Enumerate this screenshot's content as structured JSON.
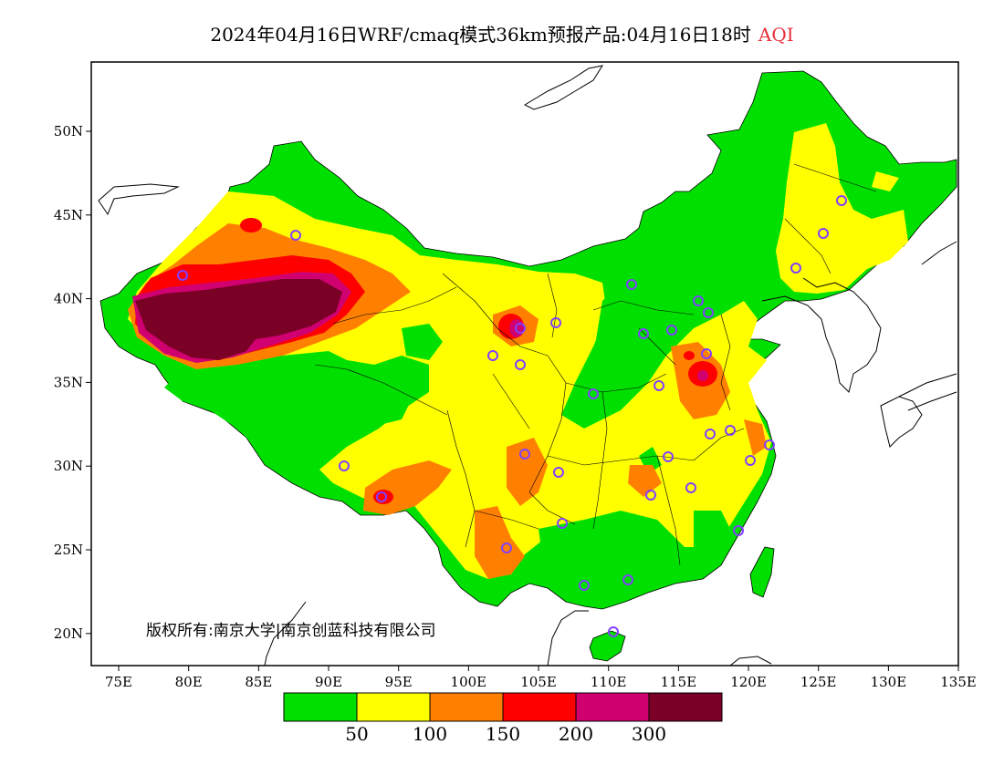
{
  "title": {
    "main": "2024年04月16日WRF/cmaq模式36km预报产品:04月16日18时",
    "variable": "AQI"
  },
  "axes": {
    "x_ticks": [
      "75E",
      "80E",
      "85E",
      "90E",
      "95E",
      "100E",
      "105E",
      "110E",
      "115E",
      "120E",
      "125E",
      "130E",
      "135E"
    ],
    "y_ticks": [
      "50N",
      "45N",
      "40N",
      "35N",
      "30N",
      "25N",
      "20N"
    ]
  },
  "legend": {
    "colors": [
      "#00e000",
      "#ffff00",
      "#ff8000",
      "#ff0000",
      "#d00070",
      "#7a0025"
    ],
    "labels": [
      "50",
      "100",
      "150",
      "200",
      "300"
    ]
  },
  "copyright": "版权所有:南京大学|南京创蓝科技有限公司",
  "colors": {
    "green": "#00e000",
    "yellow": "#ffff00",
    "orange": "#ff8000",
    "red": "#ff0000",
    "magenta": "#d00070",
    "maroon": "#7a0025",
    "station": "#8040ff"
  }
}
